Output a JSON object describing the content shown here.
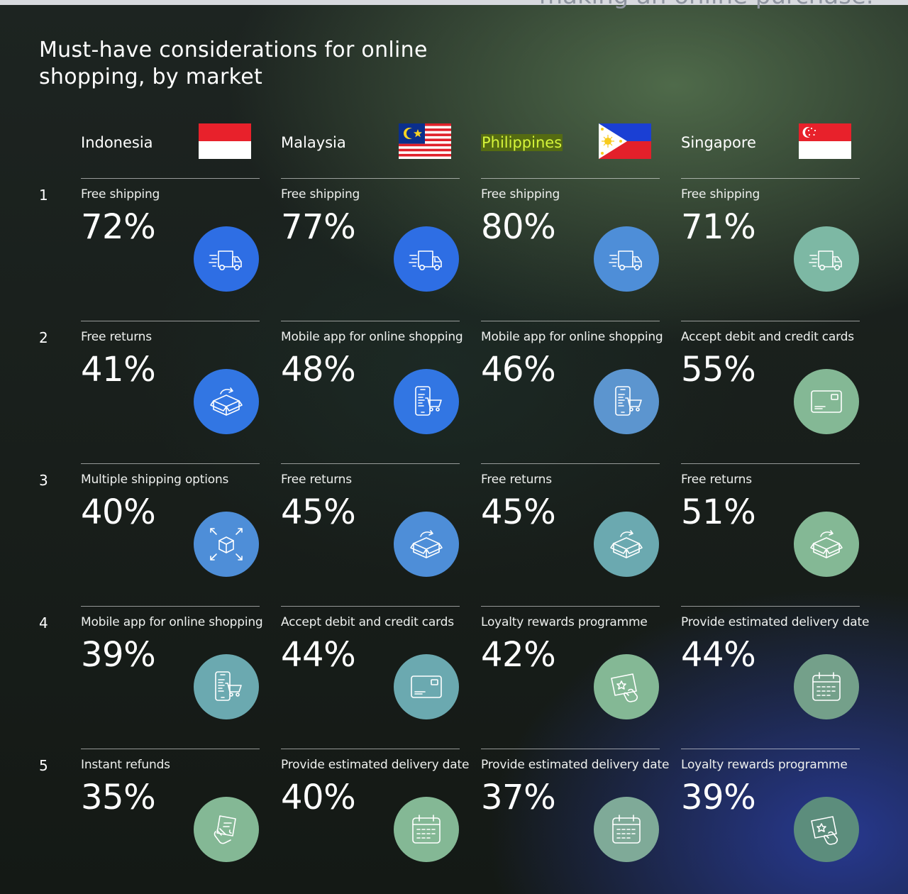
{
  "header_fragment": "making an online purchase.",
  "title": "Must-have considerations for online shopping, by market",
  "colors": {
    "blue": "#2e6ee4",
    "blue_mid": "#3b7bdc",
    "steel_blue": "#4e8ed8",
    "teal": "#5fa4c2",
    "sea_green": "#6ba9b0",
    "mint": "#7db8a4",
    "green": "#84b895",
    "sage": "#93be98",
    "muted_green": "#74a08a",
    "grey_green": "#5c8d7c",
    "highlight_bg": "#556b12",
    "highlight_text": "#d6f53a"
  },
  "chart_data": {
    "type": "table",
    "title": "Must-have considerations for online shopping, by market",
    "ranks": [
      "1",
      "2",
      "3",
      "4",
      "5"
    ],
    "markets": [
      {
        "name": "Indonesia",
        "flag": "indonesia-flag",
        "items": [
          {
            "label": "Free shipping",
            "value": "72%",
            "icon": "delivery-truck-icon",
            "color": "#2e6ee4"
          },
          {
            "label": "Free returns",
            "value": "41%",
            "icon": "return-box-icon",
            "color": "#3276e3"
          },
          {
            "label": "Multiple shipping options",
            "value": "40%",
            "icon": "box-options-icon",
            "color": "#4e8ed8"
          },
          {
            "label": "Mobile app for online shopping",
            "value": "39%",
            "icon": "mobile-cart-icon",
            "color": "#6ba9b0"
          },
          {
            "label": "Instant refunds",
            "value": "35%",
            "icon": "refund-hand-icon",
            "color": "#84b895"
          }
        ]
      },
      {
        "name": "Malaysia",
        "flag": "malaysia-flag",
        "items": [
          {
            "label": "Free shipping",
            "value": "77%",
            "icon": "delivery-truck-icon",
            "color": "#2e6ee4"
          },
          {
            "label": "Mobile app for online shopping",
            "value": "48%",
            "icon": "mobile-cart-icon",
            "color": "#3276e3"
          },
          {
            "label": "Free returns",
            "value": "45%",
            "icon": "return-box-icon",
            "color": "#4e8ed8"
          },
          {
            "label": "Accept debit and credit cards",
            "value": "44%",
            "icon": "credit-card-icon",
            "color": "#6ba9b0"
          },
          {
            "label": "Provide estimated delivery date",
            "value": "40%",
            "icon": "calendar-icon",
            "color": "#84b895"
          }
        ]
      },
      {
        "name": "Philippines",
        "flag": "philippines-flag",
        "highlight": true,
        "items": [
          {
            "label": "Free shipping",
            "value": "80%",
            "icon": "delivery-truck-icon",
            "color": "#4e8ed8"
          },
          {
            "label": "Mobile app for online shopping",
            "value": "46%",
            "icon": "mobile-cart-icon",
            "color": "#5c95cf"
          },
          {
            "label": "Free returns",
            "value": "45%",
            "icon": "return-box-icon",
            "color": "#6ba9b0"
          },
          {
            "label": "Loyalty rewards programme",
            "value": "42%",
            "icon": "loyalty-card-icon",
            "color": "#84b895"
          },
          {
            "label": "Provide estimated delivery date",
            "value": "37%",
            "icon": "calendar-icon",
            "color": "#7faa98"
          }
        ]
      },
      {
        "name": "Singapore",
        "flag": "singapore-flag",
        "items": [
          {
            "label": "Free shipping",
            "value": "71%",
            "icon": "delivery-truck-icon",
            "color": "#7db8a4"
          },
          {
            "label": "Accept debit and credit cards",
            "value": "55%",
            "icon": "credit-card-icon",
            "color": "#84b895"
          },
          {
            "label": "Free returns",
            "value": "51%",
            "icon": "return-box-icon",
            "color": "#84b895"
          },
          {
            "label": "Provide estimated delivery date",
            "value": "44%",
            "icon": "calendar-icon",
            "color": "#74a08a"
          },
          {
            "label": "Loyalty rewards programme",
            "value": "39%",
            "icon": "loyalty-card-icon",
            "color": "#5c8d7c"
          }
        ]
      }
    ]
  }
}
